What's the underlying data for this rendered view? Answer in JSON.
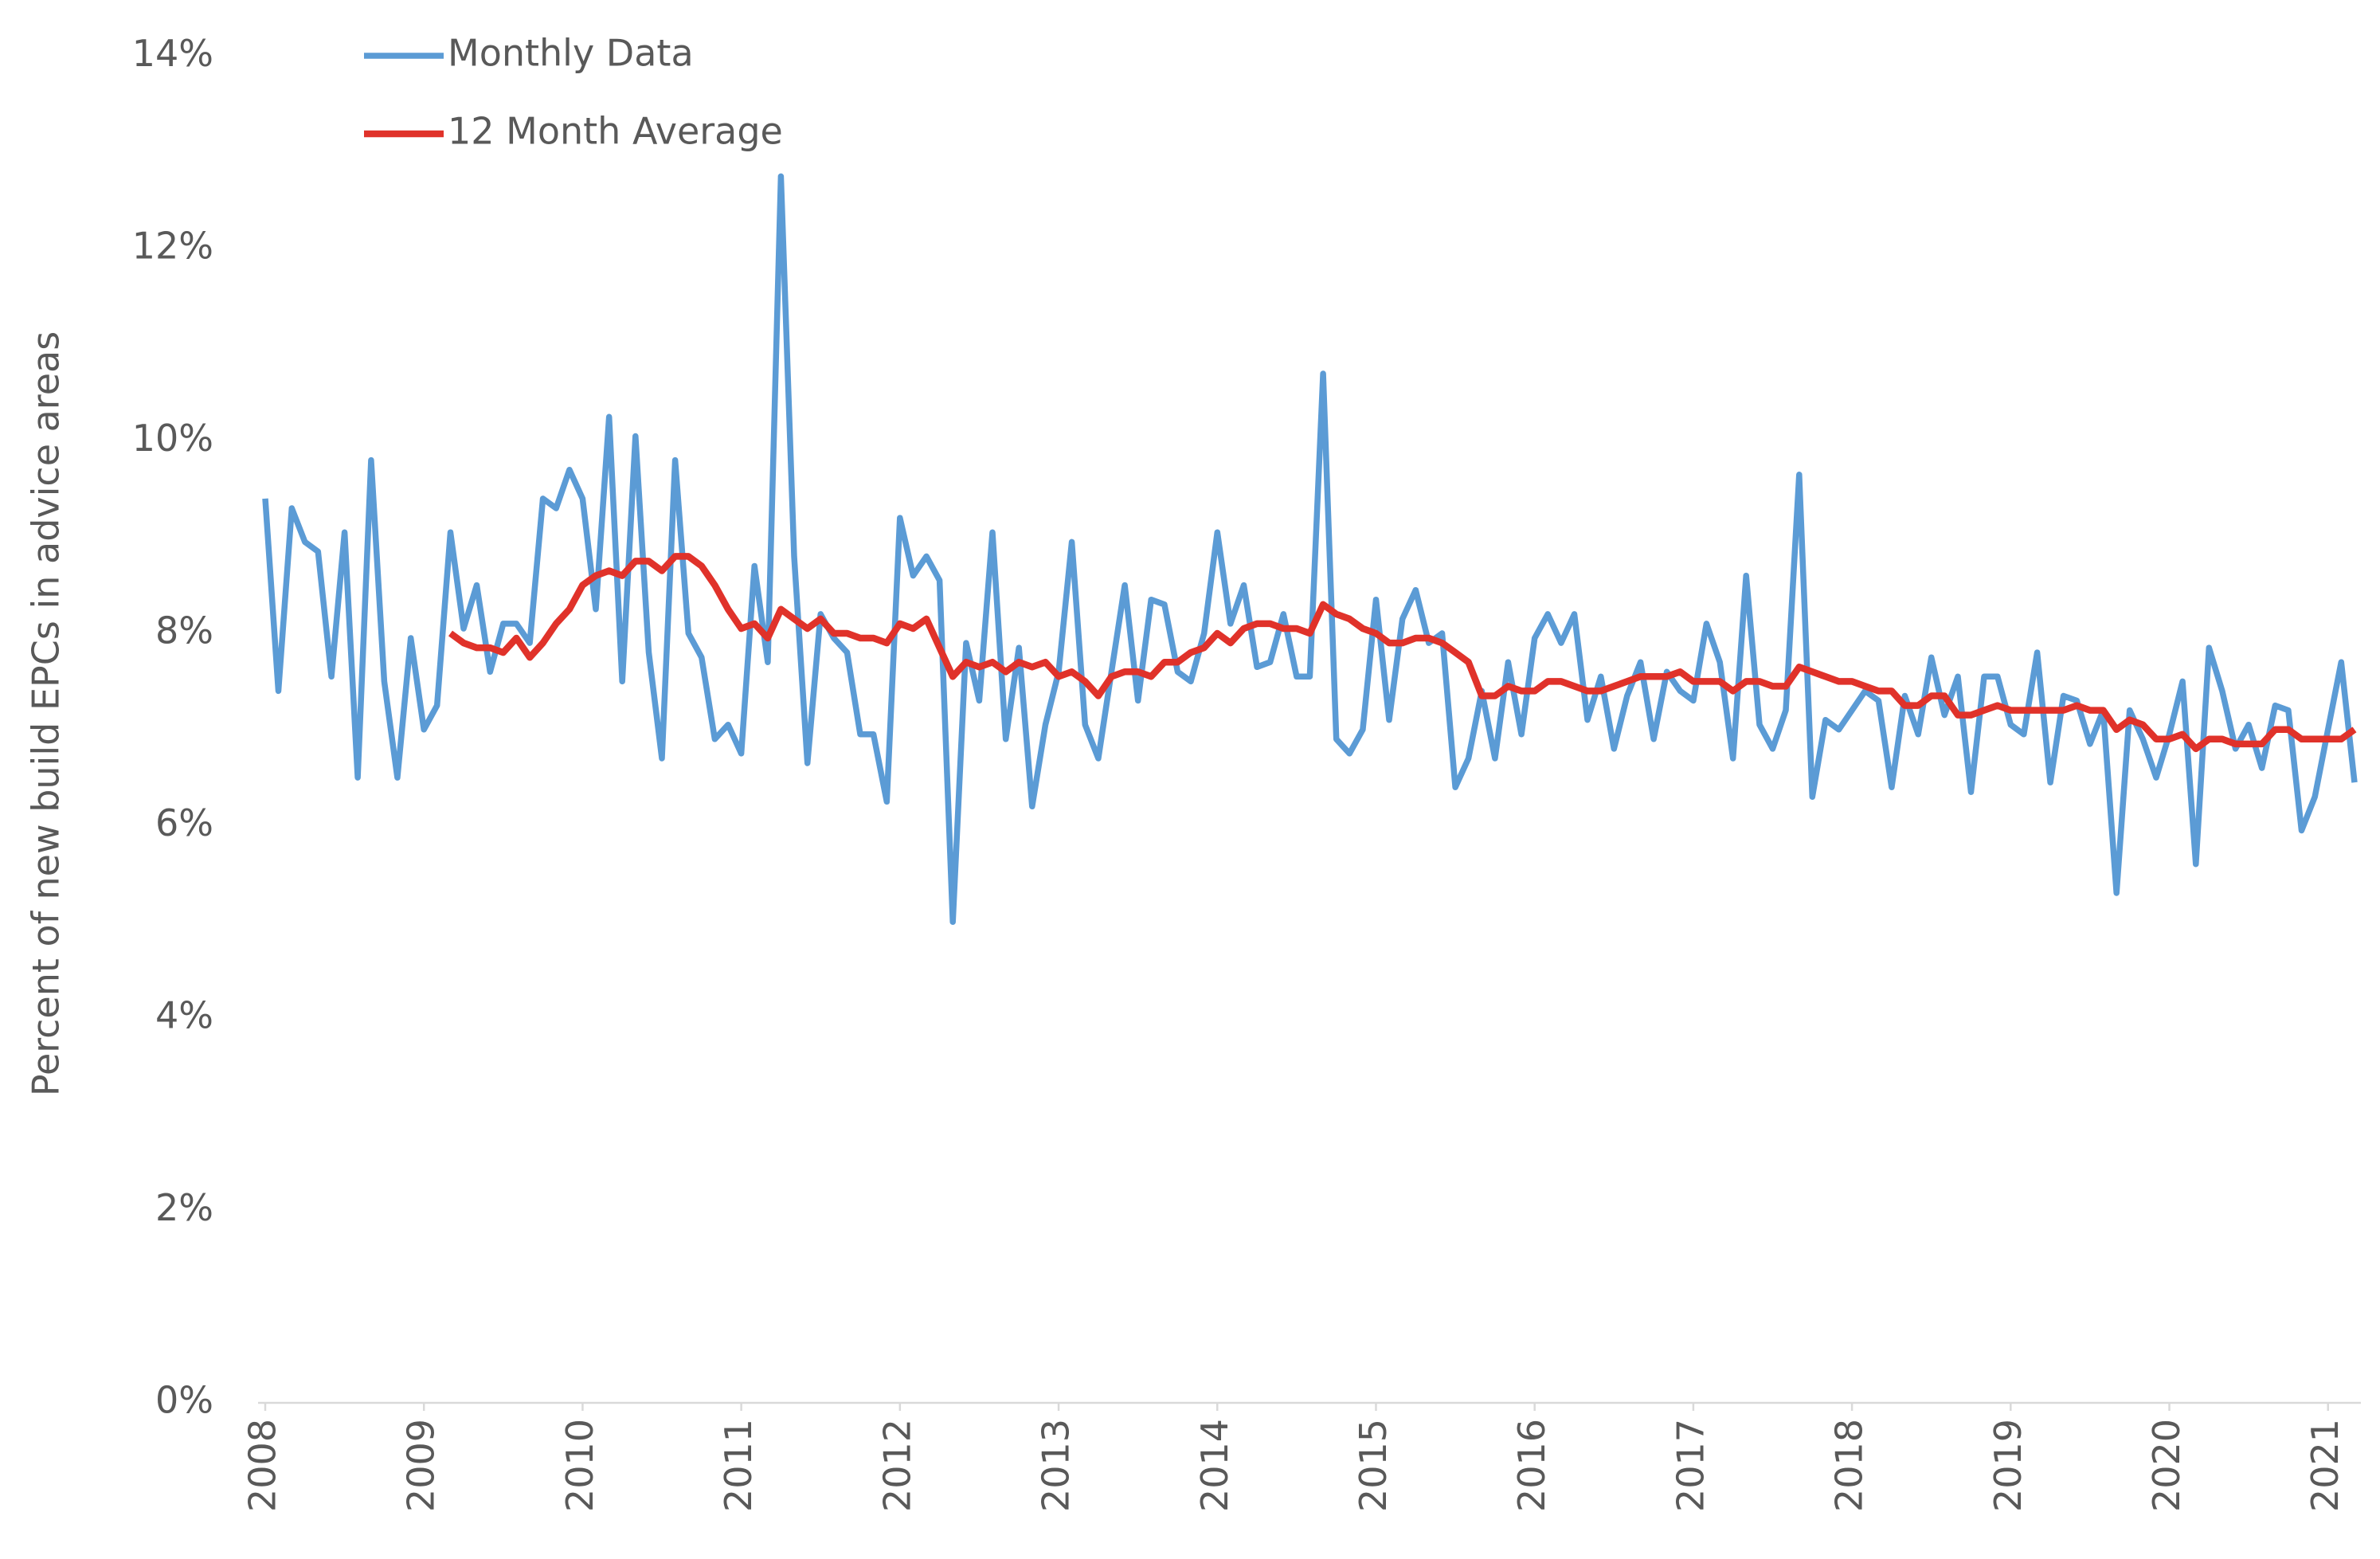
{
  "chart_data": {
    "type": "line",
    "y_label": "Percent of new build EPCs in advice areas",
    "x": [
      2008,
      2008.083,
      2008.167,
      2008.25,
      2008.333,
      2008.417,
      2008.5,
      2008.583,
      2008.667,
      2008.75,
      2008.833,
      2008.917,
      2009,
      2009.083,
      2009.167,
      2009.25,
      2009.333,
      2009.417,
      2009.5,
      2009.583,
      2009.667,
      2009.75,
      2009.833,
      2009.917,
      2010,
      2010.083,
      2010.167,
      2010.25,
      2010.333,
      2010.417,
      2010.5,
      2010.583,
      2010.667,
      2010.75,
      2010.833,
      2010.917,
      2011,
      2011.083,
      2011.167,
      2011.25,
      2011.333,
      2011.417,
      2011.5,
      2011.583,
      2011.667,
      2011.75,
      2011.833,
      2011.917,
      2012,
      2012.083,
      2012.167,
      2012.25,
      2012.333,
      2012.417,
      2012.5,
      2012.583,
      2012.667,
      2012.75,
      2012.833,
      2012.917,
      2013,
      2013.083,
      2013.167,
      2013.25,
      2013.333,
      2013.417,
      2013.5,
      2013.583,
      2013.667,
      2013.75,
      2013.833,
      2013.917,
      2014,
      2014.083,
      2014.167,
      2014.25,
      2014.333,
      2014.417,
      2014.5,
      2014.583,
      2014.667,
      2014.75,
      2014.833,
      2014.917,
      2015,
      2015.083,
      2015.167,
      2015.25,
      2015.333,
      2015.417,
      2015.5,
      2015.583,
      2015.667,
      2015.75,
      2015.833,
      2015.917,
      2016,
      2016.083,
      2016.167,
      2016.25,
      2016.333,
      2016.417,
      2016.5,
      2016.583,
      2016.667,
      2016.75,
      2016.833,
      2016.917,
      2017,
      2017.083,
      2017.167,
      2017.25,
      2017.333,
      2017.417,
      2017.5,
      2017.583,
      2017.667,
      2017.75,
      2017.833,
      2017.917,
      2018,
      2018.083,
      2018.167,
      2018.25,
      2018.333,
      2018.417,
      2018.5,
      2018.583,
      2018.667,
      2018.75,
      2018.833,
      2018.917,
      2019,
      2019.083,
      2019.167,
      2019.25,
      2019.333,
      2019.417,
      2019.5,
      2019.583,
      2019.667,
      2019.75,
      2019.833,
      2019.917,
      2020,
      2020.083,
      2020.167,
      2020.25,
      2020.333,
      2020.417,
      2020.5,
      2020.583,
      2020.667,
      2020.75,
      2020.833,
      2020.917,
      2021,
      2021.083,
      2021.167
    ],
    "series": [
      {
        "name": "Monthly Data",
        "color": "#5b9bd5",
        "values": [
          9.4,
          7.4,
          9.3,
          8.95,
          8.85,
          7.55,
          9.05,
          6.5,
          9.8,
          7.5,
          6.5,
          7.95,
          7.0,
          7.25,
          9.05,
          8.05,
          8.5,
          7.6,
          8.1,
          8.1,
          7.9,
          9.4,
          9.3,
          9.7,
          9.4,
          8.25,
          10.25,
          7.5,
          10.05,
          7.8,
          6.7,
          9.8,
          8.0,
          7.75,
          6.9,
          7.05,
          6.75,
          8.7,
          7.7,
          12.75,
          8.8,
          6.65,
          8.2,
          7.95,
          7.8,
          6.95,
          6.95,
          6.25,
          9.2,
          8.6,
          8.8,
          8.55,
          5.0,
          7.9,
          7.3,
          9.05,
          6.9,
          7.85,
          6.2,
          7.05,
          7.6,
          8.95,
          7.05,
          6.7,
          7.6,
          8.5,
          7.3,
          8.35,
          8.3,
          7.6,
          7.5,
          8.0,
          9.05,
          8.1,
          8.5,
          7.65,
          7.7,
          8.2,
          7.55,
          7.55,
          10.7,
          6.9,
          6.75,
          7.0,
          8.35,
          7.1,
          8.15,
          8.45,
          7.9,
          8.0,
          6.4,
          6.7,
          7.4,
          6.7,
          7.7,
          6.95,
          7.95,
          8.2,
          7.9,
          8.2,
          7.1,
          7.55,
          6.8,
          7.35,
          7.7,
          6.9,
          7.6,
          7.4,
          7.3,
          8.1,
          7.7,
          6.7,
          8.6,
          7.05,
          6.8,
          7.2,
          9.65,
          6.3,
          7.1,
          7.0,
          7.2,
          7.4,
          7.3,
          6.4,
          7.35,
          6.95,
          7.75,
          7.15,
          7.55,
          6.35,
          7.55,
          7.55,
          7.05,
          6.95,
          7.8,
          6.45,
          7.35,
          7.3,
          6.85,
          7.2,
          5.3,
          7.2,
          6.9,
          6.5,
          6.95,
          7.5,
          5.6,
          7.85,
          7.4,
          6.8,
          7.05,
          6.6,
          7.25,
          7.2,
          5.95,
          6.3,
          7.0,
          7.7,
          6.45
        ]
      },
      {
        "name": "12 Month Average",
        "color": "#e0322a",
        "values": [
          null,
          null,
          null,
          null,
          null,
          null,
          null,
          null,
          null,
          null,
          null,
          null,
          null,
          null,
          8.0,
          7.9,
          7.85,
          7.85,
          7.8,
          7.95,
          7.75,
          7.9,
          8.1,
          8.25,
          8.5,
          8.6,
          8.65,
          8.6,
          8.75,
          8.75,
          8.65,
          8.8,
          8.8,
          8.7,
          8.5,
          8.25,
          8.05,
          8.1,
          7.95,
          8.25,
          8.15,
          8.05,
          8.15,
          8.0,
          8.0,
          7.95,
          7.95,
          7.9,
          8.1,
          8.05,
          8.15,
          7.85,
          7.55,
          7.7,
          7.65,
          7.7,
          7.6,
          7.7,
          7.65,
          7.7,
          7.55,
          7.6,
          7.5,
          7.35,
          7.55,
          7.6,
          7.6,
          7.55,
          7.7,
          7.7,
          7.8,
          7.85,
          8.0,
          7.9,
          8.05,
          8.1,
          8.1,
          8.05,
          8.05,
          8.0,
          8.3,
          8.2,
          8.15,
          8.05,
          8.0,
          7.9,
          7.9,
          7.95,
          7.95,
          7.9,
          7.8,
          7.7,
          7.35,
          7.35,
          7.45,
          7.4,
          7.4,
          7.5,
          7.5,
          7.45,
          7.4,
          7.4,
          7.45,
          7.5,
          7.55,
          7.55,
          7.55,
          7.6,
          7.5,
          7.5,
          7.5,
          7.4,
          7.5,
          7.5,
          7.45,
          7.45,
          7.65,
          7.6,
          7.55,
          7.5,
          7.5,
          7.45,
          7.4,
          7.4,
          7.25,
          7.25,
          7.35,
          7.35,
          7.15,
          7.15,
          7.2,
          7.25,
          7.2,
          7.2,
          7.2,
          7.2,
          7.2,
          7.25,
          7.2,
          7.2,
          7.0,
          7.1,
          7.05,
          6.9,
          6.9,
          6.95,
          6.8,
          6.9,
          6.9,
          6.85,
          6.85,
          6.85,
          7.0,
          7.0,
          6.9,
          6.9,
          6.9,
          6.9,
          7.0
        ]
      }
    ],
    "xlim": [
      2008,
      2021.167
    ],
    "xticks": [
      2008,
      2009,
      2010,
      2011,
      2012,
      2013,
      2014,
      2015,
      2016,
      2017,
      2018,
      2019,
      2020,
      2021
    ],
    "ylim": [
      0,
      14
    ],
    "yticks": [
      {
        "value": 0,
        "label": "0%"
      },
      {
        "value": 2,
        "label": "2%"
      },
      {
        "value": 4,
        "label": "4%"
      },
      {
        "value": 6,
        "label": "6%"
      },
      {
        "value": 8,
        "label": "8%"
      },
      {
        "value": 10,
        "label": "10%"
      },
      {
        "value": 12,
        "label": "12%"
      },
      {
        "value": 14,
        "label": "14%"
      }
    ]
  }
}
